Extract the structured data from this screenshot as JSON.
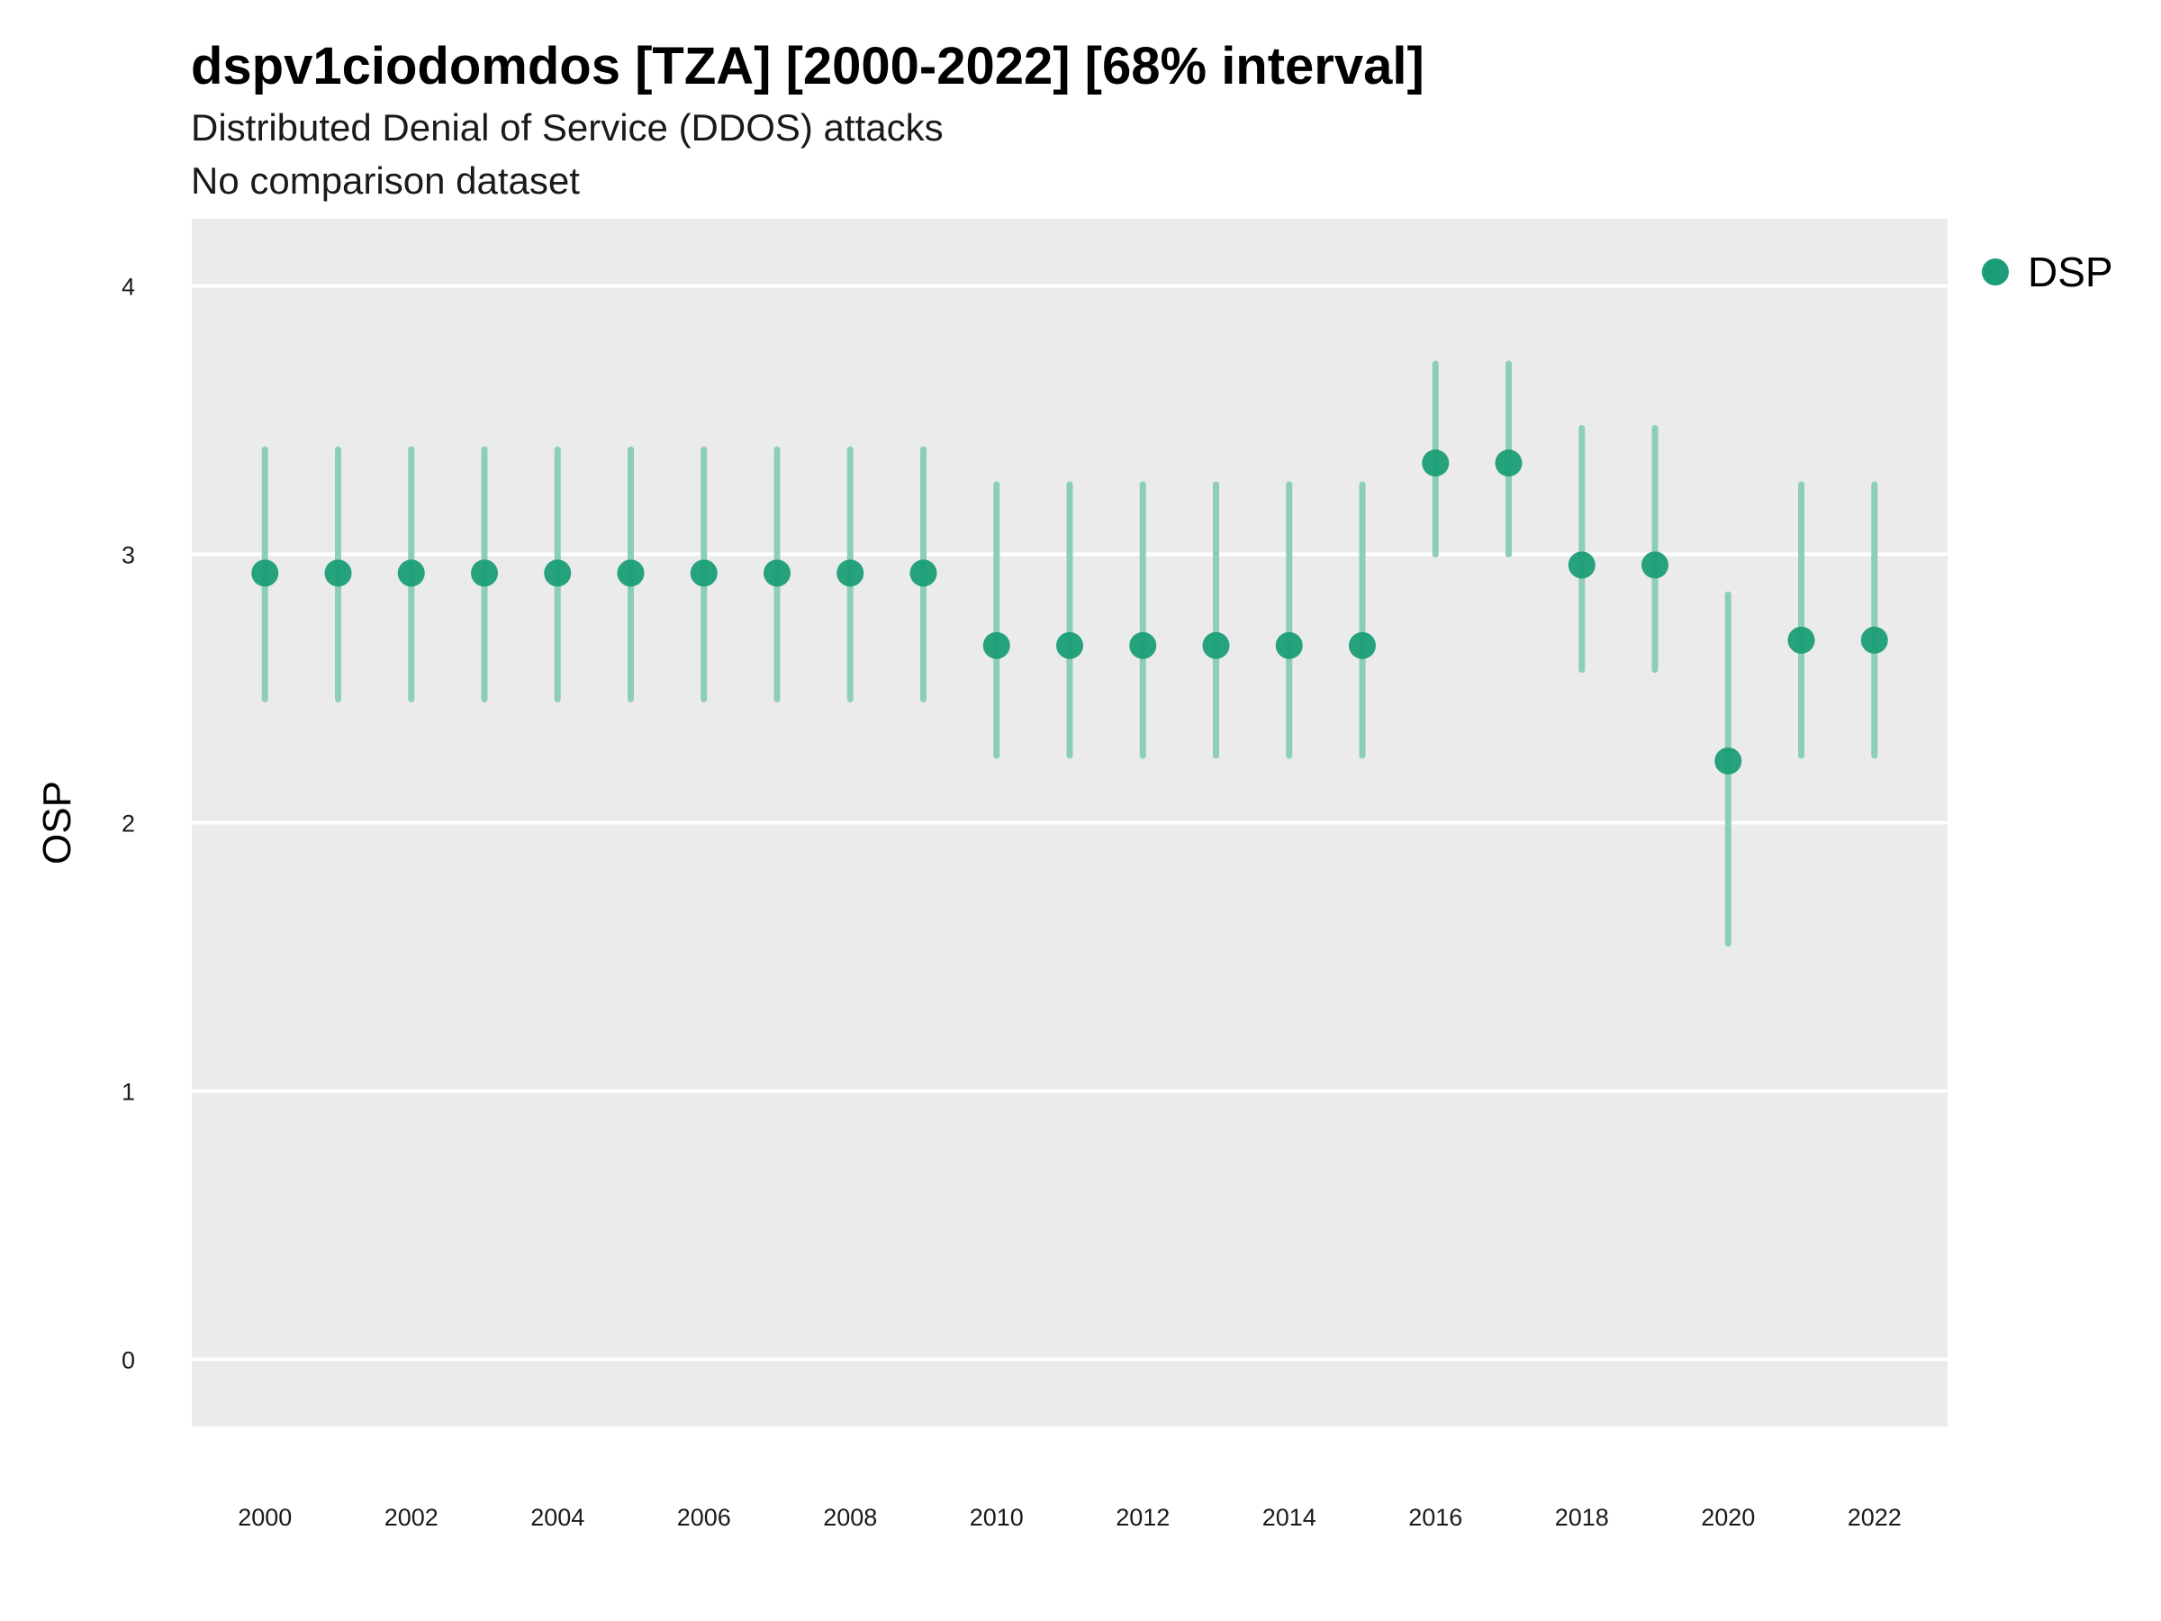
{
  "chart_data": {
    "type": "scatter",
    "title": "dspv1ciodomdos [TZA] [2000-2022] [68% interval]",
    "subtitle": "Distributed Denial of Service (DDOS) attacks",
    "caption": "No comparison dataset",
    "xlabel": "",
    "ylabel": "OSP",
    "ylim": [
      -0.25,
      4.25
    ],
    "xlim": [
      1999,
      2023
    ],
    "yticks": [
      0,
      1,
      2,
      3,
      4
    ],
    "xticks": [
      2000,
      2002,
      2004,
      2006,
      2008,
      2010,
      2012,
      2014,
      2016,
      2018,
      2020,
      2022
    ],
    "grid": true,
    "legend_position": "right",
    "colors": {
      "point": "#1b9e77",
      "interval": "#8ccfb6",
      "panel": "#ebebeb",
      "grid": "#ffffff"
    },
    "series": [
      {
        "name": "DSP",
        "points": [
          {
            "x": 2000,
            "y": 2.93,
            "lo": 2.46,
            "hi": 3.39
          },
          {
            "x": 2001,
            "y": 2.93,
            "lo": 2.46,
            "hi": 3.39
          },
          {
            "x": 2002,
            "y": 2.93,
            "lo": 2.46,
            "hi": 3.39
          },
          {
            "x": 2003,
            "y": 2.93,
            "lo": 2.46,
            "hi": 3.39
          },
          {
            "x": 2004,
            "y": 2.93,
            "lo": 2.46,
            "hi": 3.39
          },
          {
            "x": 2005,
            "y": 2.93,
            "lo": 2.46,
            "hi": 3.39
          },
          {
            "x": 2006,
            "y": 2.93,
            "lo": 2.46,
            "hi": 3.39
          },
          {
            "x": 2007,
            "y": 2.93,
            "lo": 2.46,
            "hi": 3.39
          },
          {
            "x": 2008,
            "y": 2.93,
            "lo": 2.46,
            "hi": 3.39
          },
          {
            "x": 2009,
            "y": 2.93,
            "lo": 2.46,
            "hi": 3.39
          },
          {
            "x": 2010,
            "y": 2.66,
            "lo": 2.25,
            "hi": 3.26
          },
          {
            "x": 2011,
            "y": 2.66,
            "lo": 2.25,
            "hi": 3.26
          },
          {
            "x": 2012,
            "y": 2.66,
            "lo": 2.25,
            "hi": 3.26
          },
          {
            "x": 2013,
            "y": 2.66,
            "lo": 2.25,
            "hi": 3.26
          },
          {
            "x": 2014,
            "y": 2.66,
            "lo": 2.25,
            "hi": 3.26
          },
          {
            "x": 2015,
            "y": 2.66,
            "lo": 2.25,
            "hi": 3.26
          },
          {
            "x": 2016,
            "y": 3.34,
            "lo": 3.0,
            "hi": 3.71
          },
          {
            "x": 2017,
            "y": 3.34,
            "lo": 3.0,
            "hi": 3.71
          },
          {
            "x": 2018,
            "y": 2.96,
            "lo": 2.57,
            "hi": 3.47
          },
          {
            "x": 2019,
            "y": 2.96,
            "lo": 2.57,
            "hi": 3.47
          },
          {
            "x": 2020,
            "y": 2.23,
            "lo": 1.55,
            "hi": 2.85
          },
          {
            "x": 2021,
            "y": 2.68,
            "lo": 2.25,
            "hi": 3.26
          },
          {
            "x": 2022,
            "y": 2.68,
            "lo": 2.25,
            "hi": 3.26
          }
        ]
      }
    ]
  }
}
